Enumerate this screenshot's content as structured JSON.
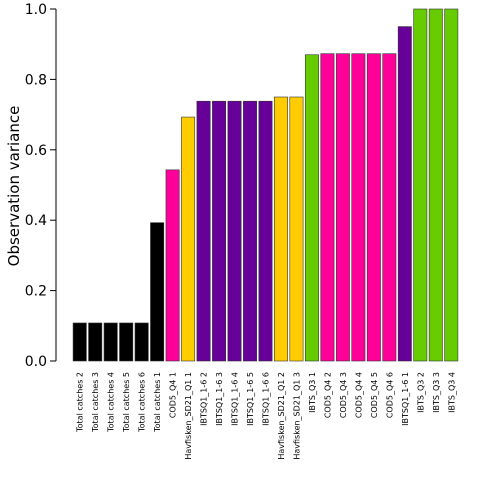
{
  "chart_data": {
    "type": "bar",
    "title": "",
    "xlabel": "",
    "ylabel": "Observation variance",
    "ylim": [
      0,
      1
    ],
    "yticks": [
      "0.0",
      "0.2",
      "0.4",
      "0.6",
      "0.8",
      "1.0"
    ],
    "grid": false,
    "legend": "none",
    "categories": [
      "Total catches 2",
      "Total catches 3",
      "Total catches 4",
      "Total catches 5",
      "Total catches 6",
      "Total catches 1",
      "COD5_Q4 1",
      "Havfisken_SD21_Q1 1",
      "IBTSQ1_1-6 2",
      "IBTSQ1_1-6 3",
      "IBTSQ1_1-6 4",
      "IBTSQ1_1-6 5",
      "IBTSQ1_1-6 6",
      "Havfisken_SD21_Q1 2",
      "Havfisken_SD21_Q1 3",
      "IBTS_Q3 1",
      "COD5_Q4 2",
      "COD5_Q4 3",
      "COD5_Q4 4",
      "COD5_Q4 5",
      "COD5_Q4 6",
      "IBTSQ1_1-6 1",
      "IBTS_Q3 2",
      "IBTS_Q3 3",
      "IBTS_Q3 4"
    ],
    "values": [
      0.108,
      0.108,
      0.108,
      0.108,
      0.108,
      0.393,
      0.543,
      0.693,
      0.738,
      0.738,
      0.738,
      0.738,
      0.738,
      0.75,
      0.75,
      0.87,
      0.873,
      0.873,
      0.873,
      0.873,
      0.873,
      0.95,
      1.0,
      1.0,
      1.0
    ],
    "colors": [
      "#000000",
      "#000000",
      "#000000",
      "#000000",
      "#000000",
      "#000000",
      "#ff0099",
      "#ffcc00",
      "#660099",
      "#660099",
      "#660099",
      "#660099",
      "#660099",
      "#ffcc00",
      "#ffcc00",
      "#66cc00",
      "#ff0099",
      "#ff0099",
      "#ff0099",
      "#ff0099",
      "#ff0099",
      "#660099",
      "#66cc00",
      "#66cc00",
      "#66cc00"
    ]
  }
}
